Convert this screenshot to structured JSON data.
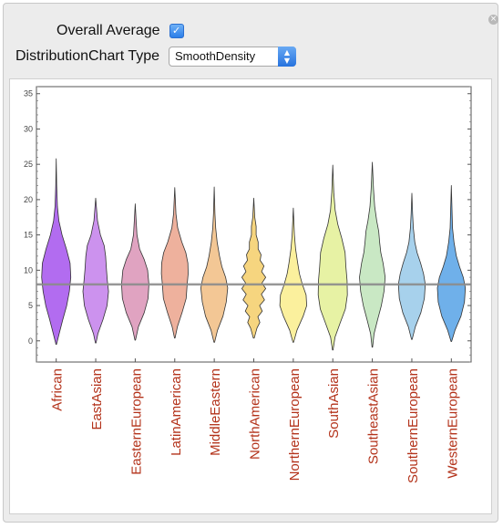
{
  "controls": {
    "overall_average_label": "Overall Average",
    "overall_average_checked": true,
    "chart_type_label": "DistributionChart Type",
    "chart_type_value": "SmoothDensity"
  },
  "icons": {
    "close": "close-icon",
    "checkbox": "checkmark-icon",
    "select": "updown-arrows-icon"
  },
  "chart_data": {
    "type": "violin",
    "title": "",
    "xlabel": "",
    "ylabel": "",
    "ylim": [
      -3,
      36
    ],
    "yticks": [
      0,
      5,
      10,
      15,
      20,
      25,
      30,
      35
    ],
    "overall_average": 8,
    "label_color": "#b3321a",
    "categories": [
      "African",
      "EastAsian",
      "EasternEuropean",
      "LatinAmerican",
      "MiddleEastern",
      "NorthAmerican",
      "NorthernEuropean",
      "SouthAsian",
      "SoutheastAsian",
      "SouthernEuropean",
      "WesternEuropean"
    ],
    "series": [
      {
        "category": "African",
        "min": -0.5,
        "max": 25.8,
        "color": "#b26cf0",
        "profile": [
          [
            -0.5,
            0.02
          ],
          [
            1,
            0.2
          ],
          [
            3,
            0.45
          ],
          [
            5,
            0.72
          ],
          [
            7,
            0.9
          ],
          [
            9,
            1.0
          ],
          [
            11,
            0.95
          ],
          [
            13,
            0.7
          ],
          [
            15,
            0.4
          ],
          [
            17,
            0.18
          ],
          [
            19,
            0.08
          ],
          [
            22,
            0.03
          ],
          [
            25.8,
            0.0
          ]
        ]
      },
      {
        "category": "EastAsian",
        "min": -0.3,
        "max": 20.2,
        "color": "#cc92ee",
        "profile": [
          [
            -0.3,
            0.02
          ],
          [
            1,
            0.15
          ],
          [
            3,
            0.5
          ],
          [
            5,
            0.78
          ],
          [
            7,
            0.88
          ],
          [
            8.5,
            0.8
          ],
          [
            10,
            0.74
          ],
          [
            12,
            0.68
          ],
          [
            13.5,
            0.58
          ],
          [
            15,
            0.32
          ],
          [
            17,
            0.12
          ],
          [
            20.2,
            0.0
          ]
        ]
      },
      {
        "category": "EasternEuropean",
        "min": 0.1,
        "max": 19.4,
        "color": "#e0a3c1",
        "profile": [
          [
            0.1,
            0.02
          ],
          [
            2,
            0.22
          ],
          [
            4,
            0.62
          ],
          [
            6,
            0.88
          ],
          [
            8,
            0.94
          ],
          [
            10,
            0.85
          ],
          [
            11.5,
            0.62
          ],
          [
            13,
            0.3
          ],
          [
            15,
            0.12
          ],
          [
            17,
            0.06
          ],
          [
            19.4,
            0.0
          ]
        ]
      },
      {
        "category": "LatinAmerican",
        "min": 0.4,
        "max": 21.7,
        "color": "#eeb19d",
        "profile": [
          [
            0.4,
            0.02
          ],
          [
            2,
            0.18
          ],
          [
            4,
            0.5
          ],
          [
            6,
            0.78
          ],
          [
            8,
            0.85
          ],
          [
            9.5,
            0.92
          ],
          [
            11,
            0.9
          ],
          [
            12.5,
            0.76
          ],
          [
            14,
            0.48
          ],
          [
            16,
            0.2
          ],
          [
            18,
            0.08
          ],
          [
            21.7,
            0.0
          ]
        ]
      },
      {
        "category": "MiddleEastern",
        "min": -0.2,
        "max": 21.8,
        "color": "#f3c795",
        "profile": [
          [
            -0.2,
            0.02
          ],
          [
            1.5,
            0.22
          ],
          [
            3.5,
            0.6
          ],
          [
            5.5,
            0.82
          ],
          [
            7.5,
            0.92
          ],
          [
            9,
            0.78
          ],
          [
            10.5,
            0.52
          ],
          [
            12,
            0.36
          ],
          [
            14,
            0.2
          ],
          [
            16,
            0.1
          ],
          [
            18,
            0.05
          ],
          [
            21.8,
            0.0
          ]
        ]
      },
      {
        "category": "NorthAmerican",
        "min": 0.4,
        "max": 20.2,
        "color": "#f6d57f",
        "profile": [
          [
            0.4,
            0.03
          ],
          [
            1.8,
            0.22
          ],
          [
            2.6,
            0.42
          ],
          [
            3.4,
            0.28
          ],
          [
            4.2,
            0.58
          ],
          [
            5.0,
            0.4
          ],
          [
            5.8,
            0.74
          ],
          [
            6.6,
            0.52
          ],
          [
            7.4,
            0.82
          ],
          [
            8.2,
            0.56
          ],
          [
            9.0,
            0.82
          ],
          [
            9.8,
            0.54
          ],
          [
            10.6,
            0.7
          ],
          [
            11.4,
            0.44
          ],
          [
            12.2,
            0.5
          ],
          [
            13.0,
            0.3
          ],
          [
            14.0,
            0.3
          ],
          [
            15.0,
            0.16
          ],
          [
            16.2,
            0.16
          ],
          [
            17.5,
            0.07
          ],
          [
            20.2,
            0.0
          ]
        ]
      },
      {
        "category": "NorthernEuropean",
        "min": -0.2,
        "max": 18.8,
        "color": "#fbf09d",
        "profile": [
          [
            -0.2,
            0.02
          ],
          [
            1.5,
            0.25
          ],
          [
            3.5,
            0.68
          ],
          [
            5,
            0.92
          ],
          [
            6.5,
            0.88
          ],
          [
            8,
            0.62
          ],
          [
            9.5,
            0.42
          ],
          [
            11,
            0.3
          ],
          [
            13,
            0.16
          ],
          [
            15,
            0.08
          ],
          [
            18.8,
            0.0
          ]
        ]
      },
      {
        "category": "SouthAsian",
        "min": -1.3,
        "max": 24.9,
        "color": "#e7f2a4",
        "profile": [
          [
            -1.3,
            0.02
          ],
          [
            0.5,
            0.15
          ],
          [
            2.5,
            0.5
          ],
          [
            4.5,
            0.86
          ],
          [
            6.5,
            1.0
          ],
          [
            8.5,
            0.98
          ],
          [
            10.5,
            0.9
          ],
          [
            12.5,
            0.84
          ],
          [
            14.5,
            0.62
          ],
          [
            16.5,
            0.34
          ],
          [
            18.5,
            0.16
          ],
          [
            21,
            0.07
          ],
          [
            24.9,
            0.0
          ]
        ]
      },
      {
        "category": "SoutheastAsian",
        "min": -0.9,
        "max": 25.3,
        "color": "#c9e8c4",
        "profile": [
          [
            -0.9,
            0.02
          ],
          [
            1,
            0.12
          ],
          [
            3,
            0.36
          ],
          [
            5,
            0.62
          ],
          [
            7,
            0.8
          ],
          [
            9,
            0.88
          ],
          [
            11,
            0.74
          ],
          [
            12.5,
            0.58
          ],
          [
            14,
            0.5
          ],
          [
            15.5,
            0.44
          ],
          [
            17,
            0.3
          ],
          [
            19,
            0.16
          ],
          [
            21.5,
            0.08
          ],
          [
            25.3,
            0.0
          ]
        ]
      },
      {
        "category": "SouthernEuropean",
        "min": 0.2,
        "max": 20.9,
        "color": "#a7d1ec",
        "profile": [
          [
            0.2,
            0.02
          ],
          [
            2,
            0.24
          ],
          [
            4,
            0.62
          ],
          [
            6,
            0.86
          ],
          [
            8,
            0.92
          ],
          [
            9.5,
            0.8
          ],
          [
            11,
            0.6
          ],
          [
            12.5,
            0.36
          ],
          [
            14,
            0.2
          ],
          [
            16,
            0.1
          ],
          [
            18,
            0.05
          ],
          [
            20.9,
            0.0
          ]
        ]
      },
      {
        "category": "WesternEuropean",
        "min": -0.1,
        "max": 22.0,
        "color": "#6fb0ea",
        "profile": [
          [
            -0.1,
            0.02
          ],
          [
            1.5,
            0.25
          ],
          [
            3.5,
            0.66
          ],
          [
            5.5,
            0.9
          ],
          [
            7.5,
            0.96
          ],
          [
            9,
            0.82
          ],
          [
            10.5,
            0.56
          ],
          [
            12,
            0.34
          ],
          [
            14,
            0.18
          ],
          [
            16,
            0.08
          ],
          [
            22.0,
            0.0
          ]
        ]
      }
    ]
  }
}
